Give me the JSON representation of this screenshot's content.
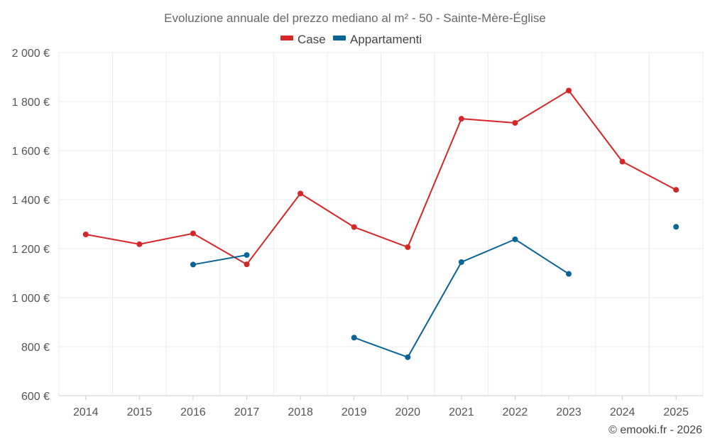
{
  "chart_data": {
    "type": "line",
    "title": "Evoluzione annuale del prezzo mediano al m² - 50 - Sainte-Mère-Église",
    "x": [
      "2014",
      "2015",
      "2016",
      "2017",
      "2018",
      "2019",
      "2020",
      "2021",
      "2022",
      "2023",
      "2024",
      "2025"
    ],
    "y_ticks": [
      "600 €",
      "800 €",
      "1 000 €",
      "1 200 €",
      "1 400 €",
      "1 600 €",
      "1 800 €",
      "2 000 €"
    ],
    "ylim": [
      600,
      2000
    ],
    "legend_position": "top-center",
    "series": [
      {
        "name": "Case",
        "color": "#d62728",
        "values": [
          1258,
          1218,
          1262,
          1136,
          1425,
          1288,
          1206,
          1730,
          1713,
          1845,
          1555,
          1440
        ]
      },
      {
        "name": "Appartamenti",
        "color": "#0a6496",
        "values": [
          null,
          null,
          1135,
          1174,
          null,
          837,
          757,
          1145,
          1238,
          1097,
          null,
          1289
        ]
      }
    ],
    "credit": "© emooki.fr - 2026"
  }
}
